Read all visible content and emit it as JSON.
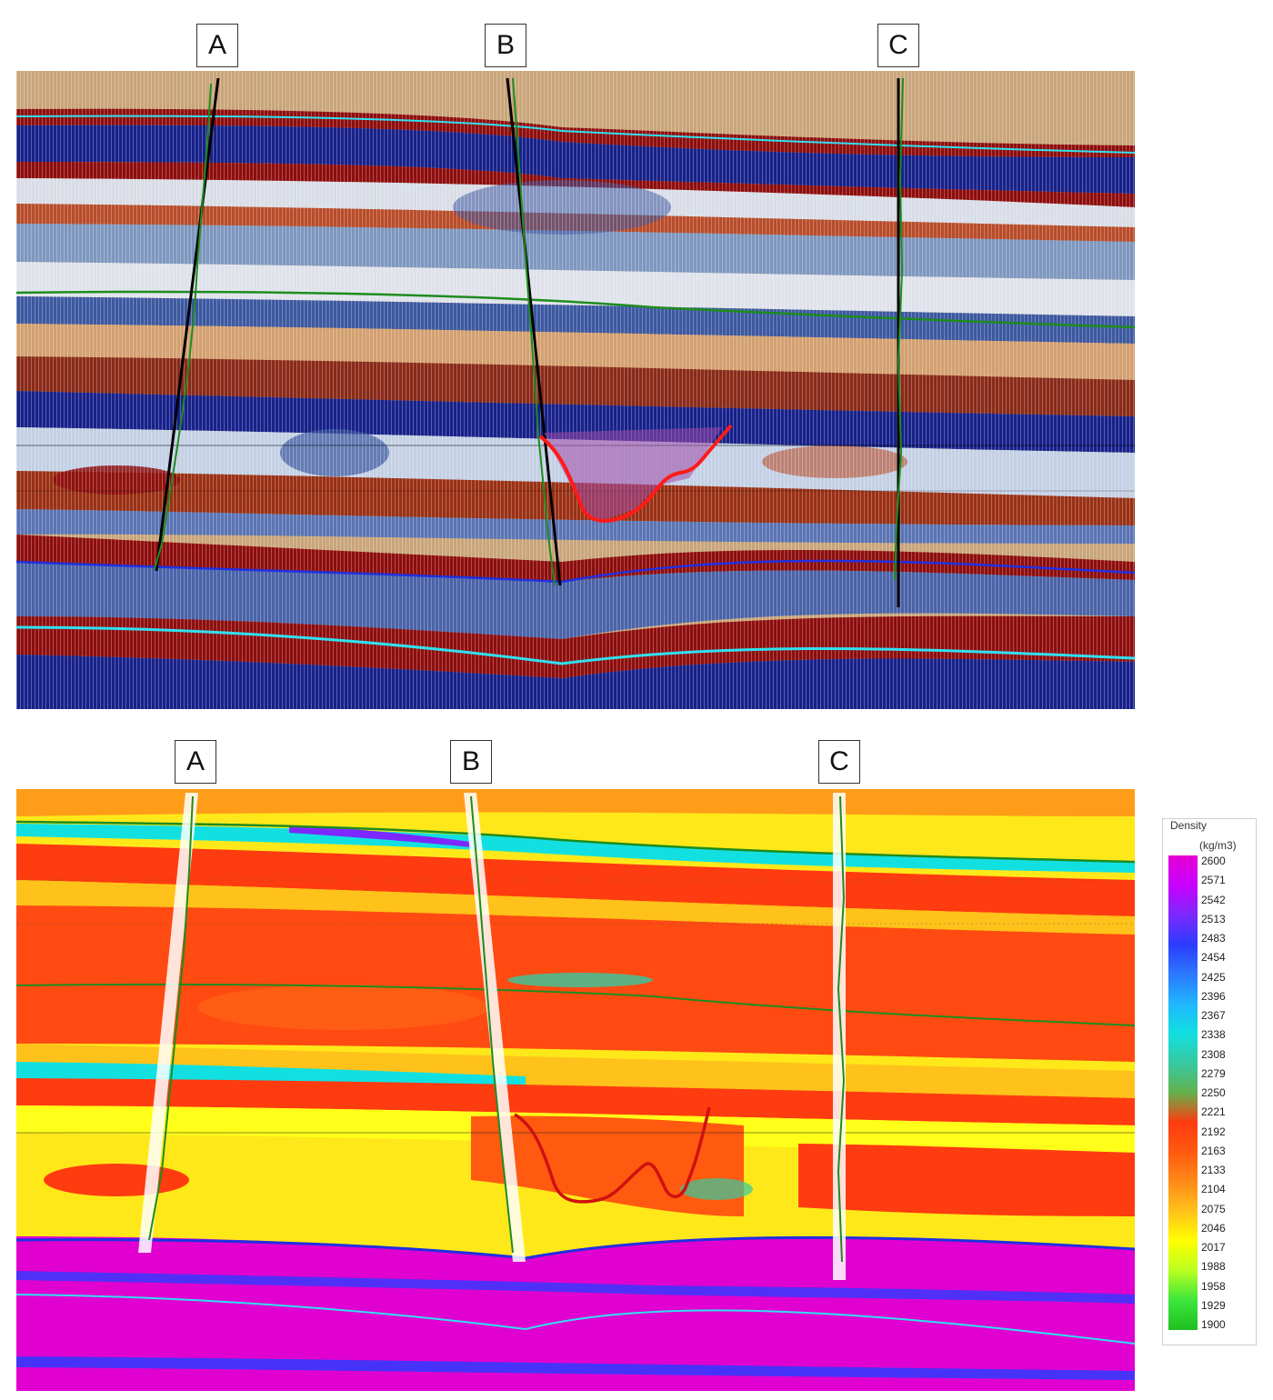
{
  "wells": {
    "seismic": [
      "A",
      "B",
      "C"
    ],
    "density": [
      "A",
      "B",
      "C"
    ]
  },
  "legend": {
    "title": "Density",
    "unit": "(kg/m3)",
    "ticks": [
      "2600",
      "2571",
      "2542",
      "2513",
      "2483",
      "2454",
      "2425",
      "2396",
      "2367",
      "2338",
      "2308",
      "2279",
      "2250",
      "2221",
      "2192",
      "2163",
      "2133",
      "2104",
      "2075",
      "2046",
      "2017",
      "1988",
      "1958",
      "1929",
      "1900"
    ],
    "colors": [
      "#e600d2",
      "#c800ff",
      "#7d28ff",
      "#2c3cff",
      "#2c78ff",
      "#1fb6ff",
      "#12e0e0",
      "#36c9a0",
      "#64b24c",
      "#ff3b10",
      "#ff5a10",
      "#ff8a18",
      "#ffc21a",
      "#ffff00",
      "#b8ff20",
      "#3ce63c",
      "#1fbf1f"
    ]
  },
  "colors": {
    "seismic_blue": "#17218a",
    "seismic_red": "#8e0d0d",
    "seismic_orange": "#d28c3c",
    "seismic_light": "#d9dde6",
    "horizon_cyan": "#30e0f0",
    "horizon_green": "#1e8c1e",
    "horizon_blue": "#2030e0",
    "anomaly_red": "#ff1a1a",
    "density_yellow": "#ffff1a",
    "density_red": "#ff3a14",
    "density_magenta": "#e000d0"
  }
}
